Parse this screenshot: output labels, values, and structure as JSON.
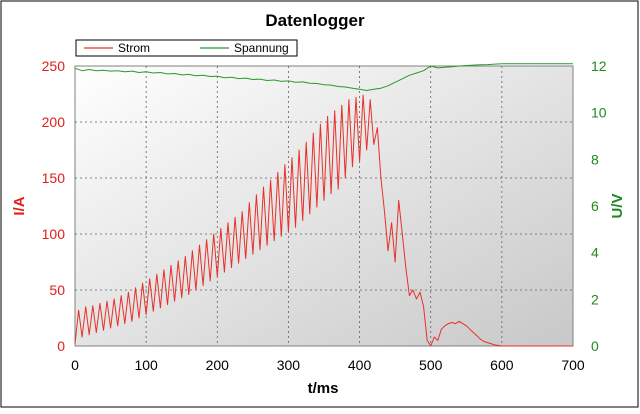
{
  "chart_data": {
    "type": "line",
    "title": "Datenlogger",
    "xlabel": "t/ms",
    "ylabel_left": "I/A",
    "ylabel_right": "U/V",
    "xlim": [
      0,
      700
    ],
    "ylim_left": [
      0,
      250
    ],
    "ylim_right": [
      0,
      12
    ],
    "xticks": [
      0,
      100,
      200,
      300,
      400,
      500,
      600,
      700
    ],
    "yticks_left": [
      0,
      50,
      100,
      150,
      200,
      250
    ],
    "yticks_right": [
      0,
      2,
      4,
      6,
      8,
      10,
      12
    ],
    "grid": true,
    "legend_position": "top-left",
    "series": [
      {
        "name": "Strom",
        "axis": "left",
        "color": "#e8302a",
        "x": [
          0,
          5,
          10,
          15,
          20,
          25,
          30,
          35,
          40,
          45,
          50,
          55,
          60,
          65,
          70,
          75,
          80,
          85,
          90,
          95,
          100,
          105,
          110,
          115,
          120,
          125,
          130,
          135,
          140,
          145,
          150,
          155,
          160,
          165,
          170,
          175,
          180,
          185,
          190,
          195,
          200,
          205,
          210,
          215,
          220,
          225,
          230,
          235,
          240,
          245,
          250,
          255,
          260,
          265,
          270,
          275,
          280,
          285,
          290,
          295,
          300,
          305,
          310,
          315,
          320,
          325,
          330,
          335,
          340,
          345,
          350,
          355,
          360,
          365,
          370,
          375,
          380,
          385,
          390,
          395,
          400,
          405,
          410,
          415,
          420,
          425,
          430,
          435,
          440,
          445,
          450,
          455,
          460,
          465,
          470,
          475,
          480,
          485,
          490,
          495,
          500,
          505,
          510,
          515,
          520,
          525,
          530,
          535,
          540,
          545,
          550,
          555,
          560,
          565,
          570,
          575,
          580,
          590,
          600,
          620,
          650,
          700
        ],
        "values": [
          2,
          32,
          8,
          35,
          10,
          36,
          12,
          38,
          14,
          40,
          16,
          42,
          18,
          45,
          20,
          48,
          22,
          52,
          25,
          56,
          28,
          60,
          31,
          64,
          34,
          68,
          37,
          72,
          40,
          76,
          43,
          80,
          46,
          85,
          50,
          90,
          54,
          95,
          58,
          100,
          62,
          105,
          66,
          110,
          70,
          115,
          74,
          120,
          78,
          128,
          82,
          135,
          86,
          142,
          90,
          148,
          94,
          155,
          98,
          162,
          102,
          168,
          106,
          175,
          112,
          182,
          118,
          190,
          124,
          198,
          130,
          205,
          136,
          210,
          140,
          215,
          150,
          220,
          160,
          222,
          165,
          224,
          175,
          220,
          180,
          195,
          150,
          120,
          85,
          110,
          75,
          130,
          100,
          70,
          45,
          50,
          42,
          48,
          35,
          5,
          0,
          8,
          5,
          15,
          18,
          20,
          21,
          20,
          22,
          20,
          18,
          15,
          12,
          9,
          6,
          4,
          3,
          1,
          0,
          0,
          0,
          0
        ]
      },
      {
        "name": "Spannung",
        "axis": "right",
        "color": "#2a9a2a",
        "x": [
          0,
          10,
          20,
          30,
          40,
          50,
          60,
          70,
          80,
          90,
          100,
          110,
          120,
          130,
          140,
          150,
          160,
          170,
          180,
          190,
          200,
          210,
          220,
          230,
          240,
          250,
          260,
          270,
          280,
          290,
          300,
          310,
          320,
          330,
          340,
          350,
          360,
          370,
          380,
          390,
          400,
          410,
          420,
          430,
          440,
          450,
          460,
          470,
          480,
          490,
          500,
          510,
          520,
          530,
          540,
          550,
          560,
          570,
          580,
          590,
          600,
          620,
          640,
          660,
          680,
          700
        ],
        "values": [
          11.9,
          11.8,
          11.85,
          11.8,
          11.82,
          11.78,
          11.8,
          11.75,
          11.78,
          11.72,
          11.75,
          11.7,
          11.72,
          11.66,
          11.68,
          11.62,
          11.64,
          11.58,
          11.6,
          11.55,
          11.56,
          11.5,
          11.52,
          11.46,
          11.48,
          11.42,
          11.44,
          11.38,
          11.4,
          11.34,
          11.36,
          11.3,
          11.32,
          11.26,
          11.25,
          11.2,
          11.18,
          11.12,
          11.1,
          11.05,
          11.0,
          10.95,
          11.0,
          11.05,
          11.15,
          11.3,
          11.45,
          11.6,
          11.7,
          11.8,
          12.0,
          11.92,
          11.95,
          11.97,
          12.0,
          12.02,
          12.04,
          12.05,
          12.06,
          12.08,
          12.1,
          12.1,
          12.1,
          12.1,
          12.1,
          12.1
        ]
      }
    ]
  }
}
